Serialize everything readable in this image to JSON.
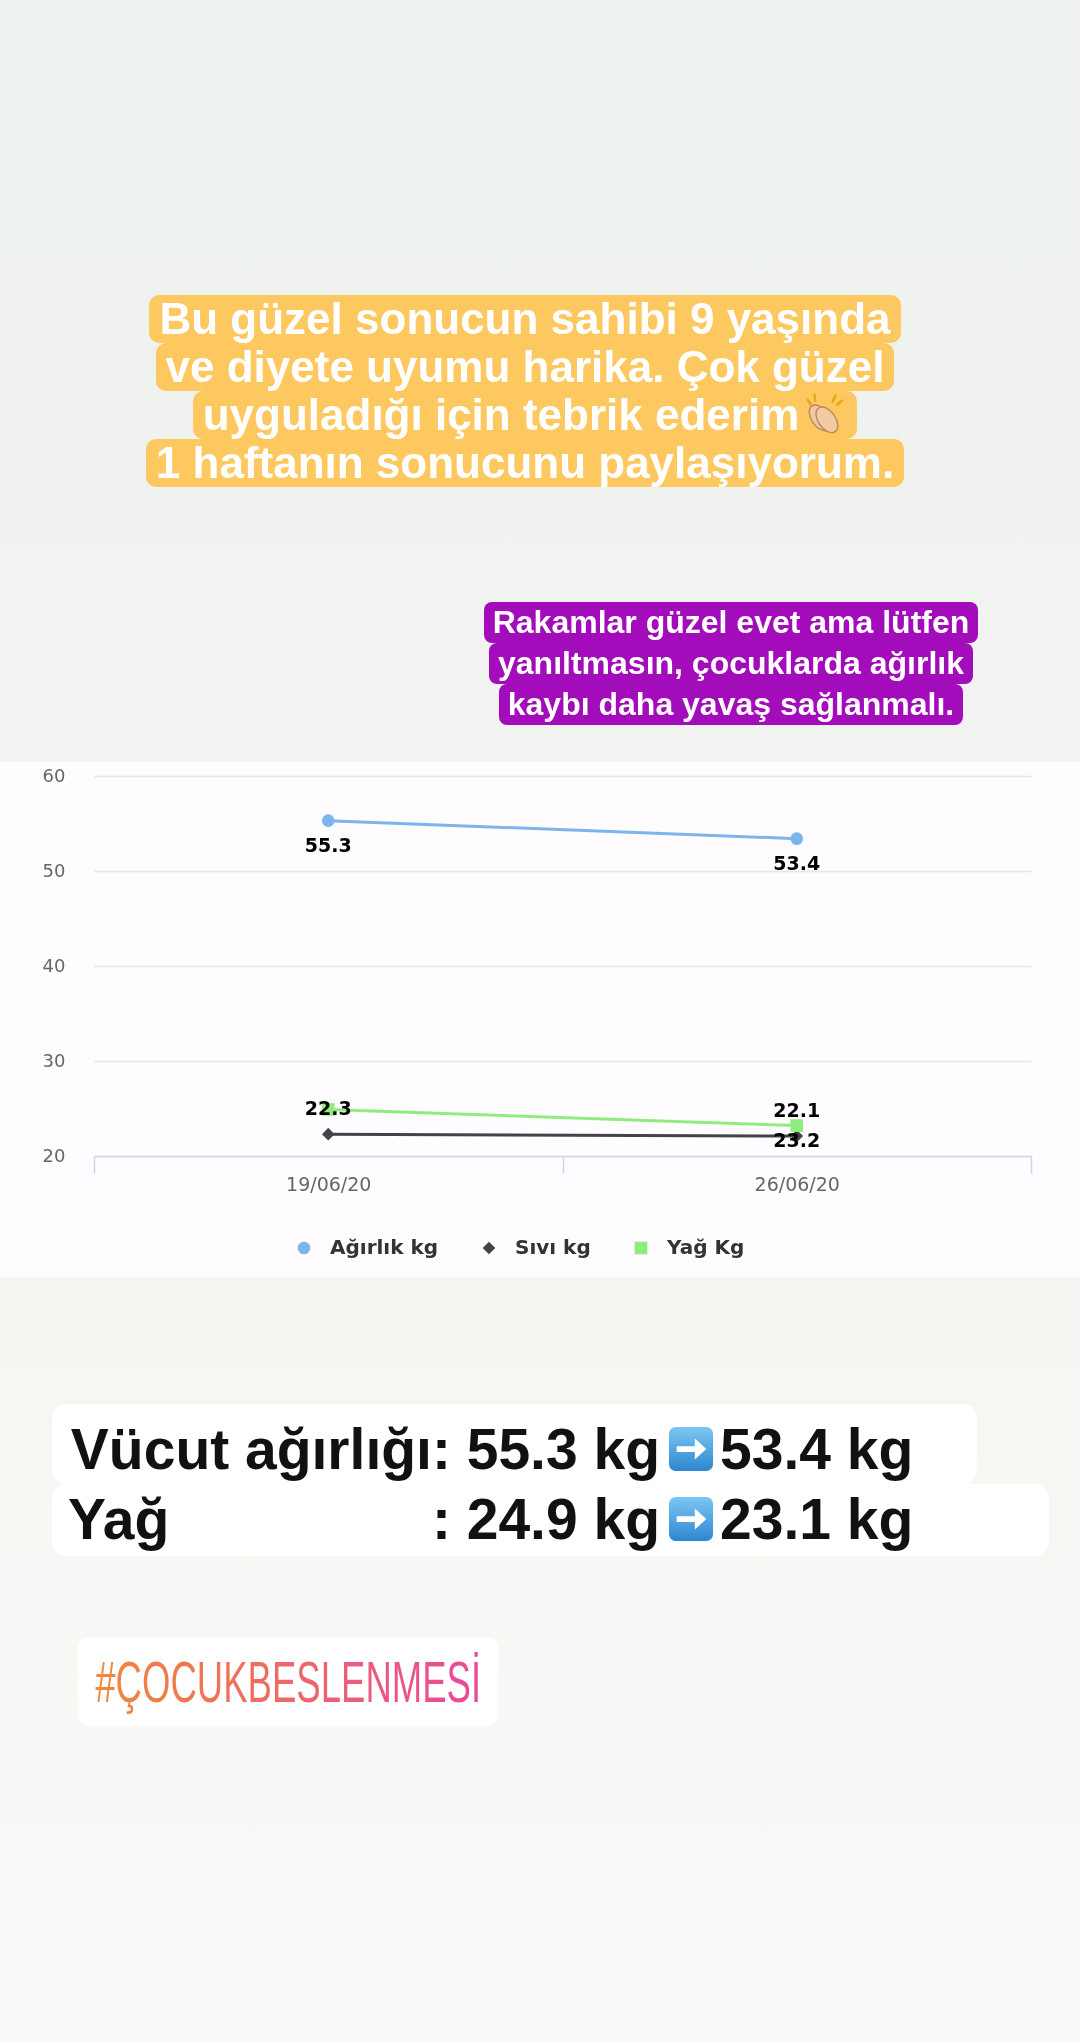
{
  "chart_data": {
    "type": "line",
    "annotations": [
      "Bu güzel sonucun sahibi 9 yaşında\nve diyete uyumu harika. Çok güzel\nuyguladığı için tebrik ederim\n1 haftanın sonucunu paylaşıyorum.",
      "Rakamlar güzel evet ama lütfen\nyanıltmasın, çocuklarda ağırlık\nkaybı daha yavaş sağlanmalı.",
      "Vücut ağırlığı: 55.3 kg",
      "53.4 kg",
      "Yağ",
      ": 24.9 kg",
      "23.1 kg",
      "#ÇOCUKBESLENMESİ"
    ],
    "categories": [
      "19/06/20",
      "26/06/20"
    ],
    "series": [
      {
        "name": "Ağırlık kg",
        "color": "#7cb5ec",
        "marker": "circle",
        "values": [
          55.3,
          53.4
        ],
        "value_labels": [
          "55.3",
          "53.4"
        ]
      },
      {
        "name": "Sıvı kg",
        "color": "#434348",
        "marker": "diamond",
        "values": [
          22.3,
          22.1
        ],
        "value_labels": [
          "22.3",
          "22.1"
        ]
      },
      {
        "name": "Yağ Kg",
        "color": "#90ed7d",
        "marker": "square",
        "values": [
          24.9,
          23.2
        ],
        "value_labels": [
          null,
          "23.2"
        ]
      }
    ],
    "ylim": [
      20,
      60
    ],
    "yticks": [
      20,
      30,
      40,
      50,
      60
    ],
    "grid": "y",
    "legend": "bottom",
    "line_style": "solid"
  }
}
